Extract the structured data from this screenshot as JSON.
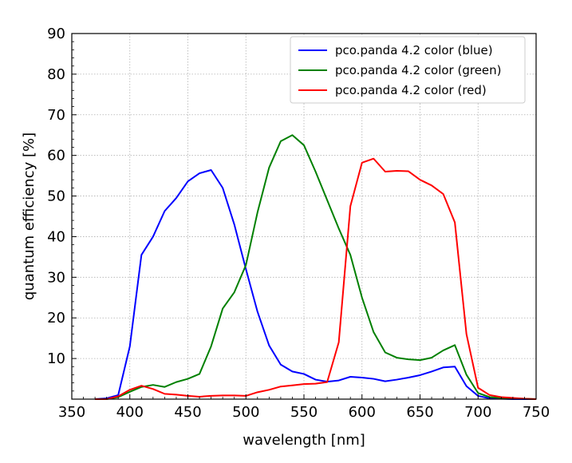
{
  "chart_data": {
    "type": "line",
    "xlabel": "wavelength [nm]",
    "ylabel": "quantum efficiency [%]",
    "xlim": [
      350,
      750
    ],
    "ylim": [
      0,
      90
    ],
    "xticks": [
      "350",
      "400",
      "450",
      "500",
      "550",
      "600",
      "650",
      "700",
      "750"
    ],
    "yticks": [
      "10",
      "20",
      "30",
      "40",
      "50",
      "60",
      "70",
      "80",
      "90"
    ],
    "grid": true,
    "legend_position": "top-right",
    "series": [
      {
        "name": "pco.panda 4.2 color (blue)",
        "color": "#0000ff",
        "x": [
          370,
          380,
          390,
          400,
          410,
          420,
          430,
          440,
          450,
          460,
          470,
          480,
          490,
          500,
          510,
          520,
          530,
          540,
          550,
          560,
          570,
          580,
          590,
          600,
          610,
          620,
          630,
          640,
          650,
          660,
          670,
          680,
          690,
          700,
          710,
          720,
          730,
          740,
          750
        ],
        "y": [
          0,
          0.2,
          1.0,
          13.0,
          35.5,
          40.0,
          46.3,
          49.5,
          53.6,
          55.6,
          56.4,
          52.0,
          43.0,
          32.0,
          21.5,
          13.2,
          8.5,
          6.8,
          6.2,
          4.8,
          4.3,
          4.6,
          5.5,
          5.3,
          5.0,
          4.4,
          4.8,
          5.3,
          5.9,
          6.8,
          7.8,
          8.0,
          3.2,
          0.8,
          0.2,
          0.1,
          0,
          0,
          0
        ]
      },
      {
        "name": "pco.panda 4.2 color (green)",
        "color": "#008000",
        "x": [
          370,
          380,
          390,
          400,
          410,
          420,
          430,
          440,
          450,
          460,
          470,
          480,
          490,
          500,
          510,
          520,
          530,
          540,
          550,
          560,
          570,
          580,
          590,
          600,
          610,
          620,
          630,
          640,
          650,
          660,
          670,
          680,
          690,
          700,
          710,
          720,
          730,
          740,
          750
        ],
        "y": [
          0,
          0,
          0.5,
          1.8,
          3.0,
          3.5,
          3.0,
          4.2,
          5.0,
          6.2,
          13.0,
          22.3,
          26.3,
          33.0,
          46.0,
          57.0,
          63.5,
          65.0,
          62.5,
          56.0,
          49.0,
          42.0,
          35.5,
          25.0,
          16.5,
          11.5,
          10.2,
          9.8,
          9.6,
          10.2,
          12.0,
          13.3,
          6.0,
          1.5,
          0.5,
          0.3,
          0.2,
          0.1,
          0
        ]
      },
      {
        "name": "pco.panda 4.2 color (red)",
        "color": "#ff0000",
        "x": [
          370,
          380,
          390,
          400,
          410,
          420,
          430,
          440,
          450,
          460,
          470,
          480,
          490,
          500,
          510,
          520,
          530,
          540,
          550,
          560,
          570,
          580,
          590,
          600,
          610,
          620,
          630,
          640,
          650,
          660,
          670,
          680,
          690,
          700,
          710,
          720,
          730,
          740,
          750
        ],
        "y": [
          0,
          0,
          0.7,
          2.3,
          3.3,
          2.5,
          1.3,
          1.1,
          0.8,
          0.6,
          0.8,
          0.9,
          0.9,
          0.8,
          1.7,
          2.3,
          3.1,
          3.4,
          3.7,
          3.8,
          4.2,
          14.0,
          47.5,
          58.2,
          59.2,
          56.0,
          56.2,
          56.1,
          54.0,
          52.6,
          50.5,
          43.5,
          16.0,
          2.8,
          1.0,
          0.5,
          0.3,
          0.1,
          0
        ]
      }
    ]
  }
}
